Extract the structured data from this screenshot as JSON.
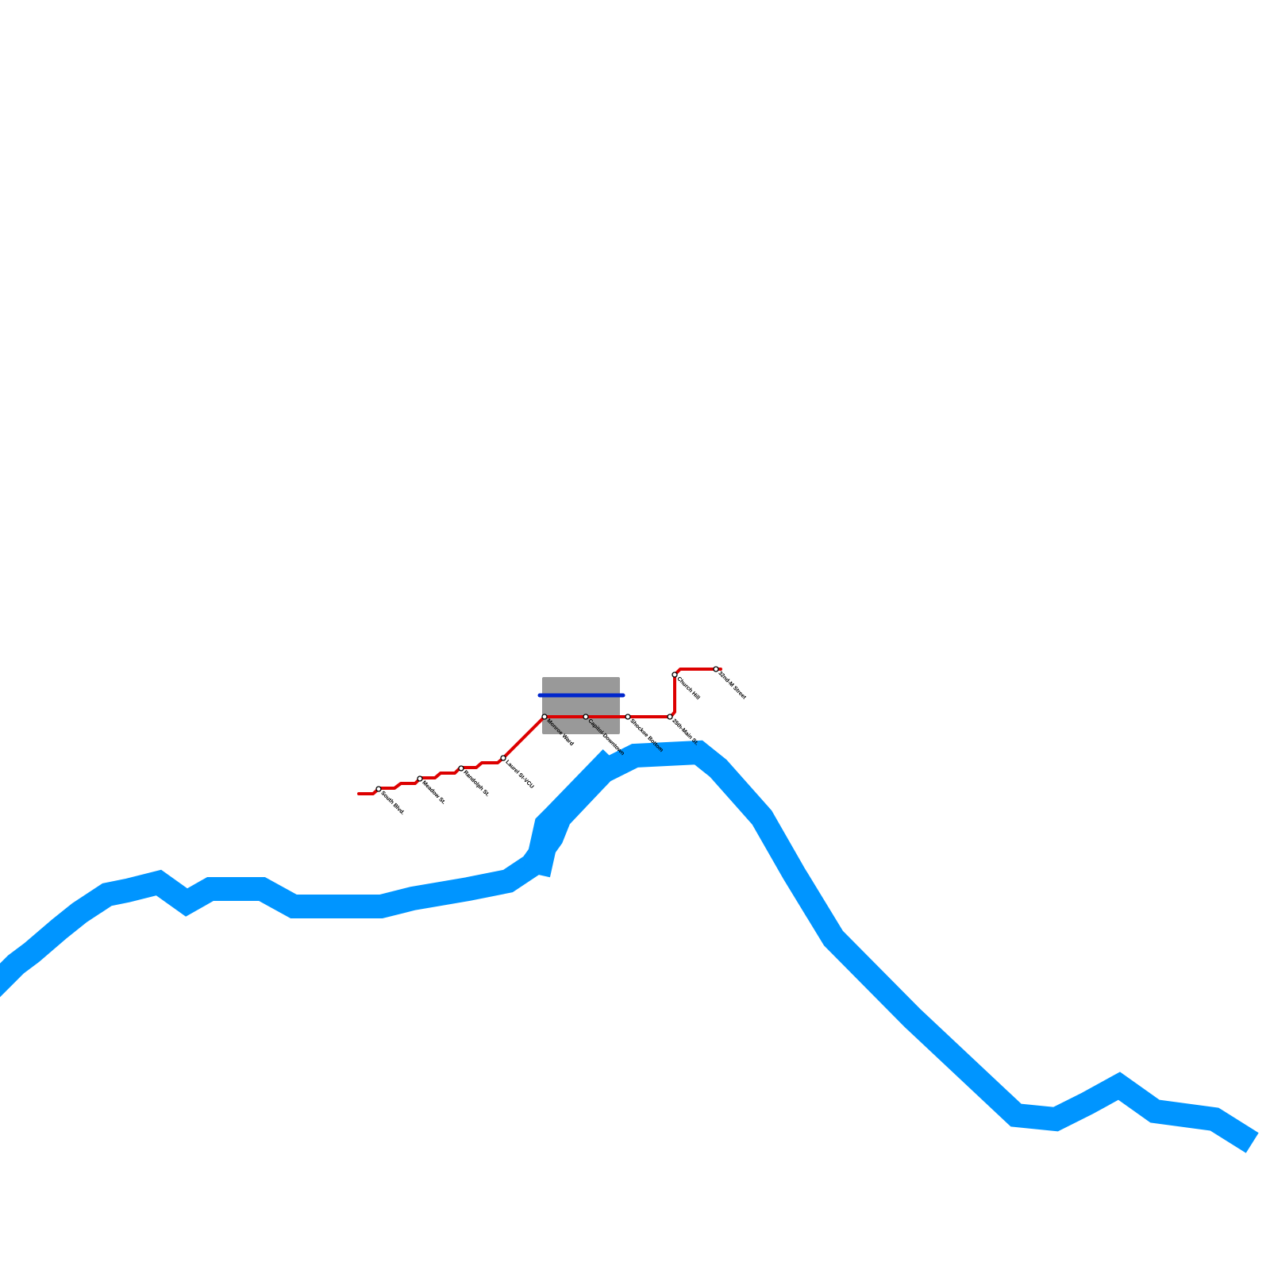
{
  "stations": [
    {
      "label": "South Blvd."
    },
    {
      "label": "Meadow St."
    },
    {
      "label": "Randolph St."
    },
    {
      "label": "Laurel St-VCU"
    },
    {
      "label": "Monroe Ward"
    },
    {
      "label": "Capitol-Downtown"
    },
    {
      "label": "Shockoe Bottom"
    },
    {
      "label": "25th-Main St."
    },
    {
      "label": "Church Hill"
    },
    {
      "label": "32nd-M Street"
    }
  ]
}
